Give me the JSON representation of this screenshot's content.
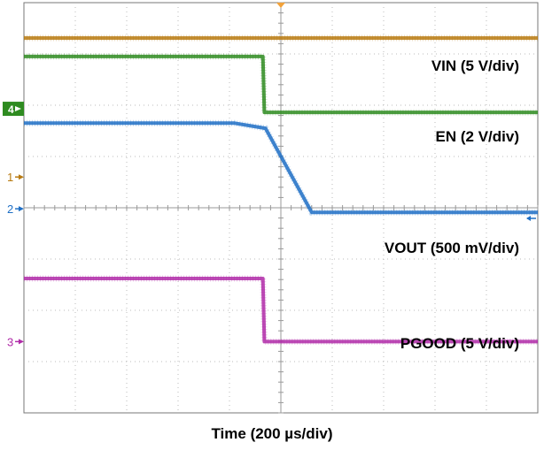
{
  "chart_data": {
    "type": "line",
    "title": "",
    "xlabel": "Time (200 µs/div)",
    "ylabel": "",
    "grid": true,
    "divisions": {
      "x": 10,
      "y": 8
    },
    "xlim": [
      0,
      10
    ],
    "ylim": [
      0,
      8
    ],
    "series": [
      {
        "name": "VIN (5 V/div)",
        "channel": "1",
        "color": "#b87a10",
        "points": [
          [
            0,
            7.31
          ],
          [
            10,
            7.31
          ]
        ]
      },
      {
        "name": "EN (2 V/div)",
        "channel": "4",
        "color": "#2e8b20",
        "points": [
          [
            0,
            6.95
          ],
          [
            4.65,
            6.95
          ],
          [
            4.68,
            5.86
          ],
          [
            10,
            5.86
          ]
        ]
      },
      {
        "name": "VOUT (500 mV/div)",
        "channel": "2",
        "color": "#1f6fc5",
        "points": [
          [
            0,
            5.65
          ],
          [
            4.1,
            5.65
          ],
          [
            4.7,
            5.55
          ],
          [
            5.6,
            3.91
          ],
          [
            10,
            3.91
          ]
        ]
      },
      {
        "name": "PGOOD (5 V/div)",
        "channel": "3",
        "color": "#b02aa8",
        "points": [
          [
            0,
            2.62
          ],
          [
            4.65,
            2.62
          ],
          [
            4.68,
            1.39
          ],
          [
            10,
            1.39
          ]
        ]
      }
    ],
    "channel_markers": [
      {
        "channel": "4",
        "level": 5.93,
        "color": "#2e8b20",
        "boxed": true
      },
      {
        "channel": "1",
        "level": 4.6,
        "color": "#b87a10",
        "boxed": false
      },
      {
        "channel": "2",
        "level": 3.98,
        "color": "#1f6fc5",
        "boxed": false
      },
      {
        "channel": "3",
        "level": 1.39,
        "color": "#b02aa8",
        "boxed": false
      }
    ]
  }
}
